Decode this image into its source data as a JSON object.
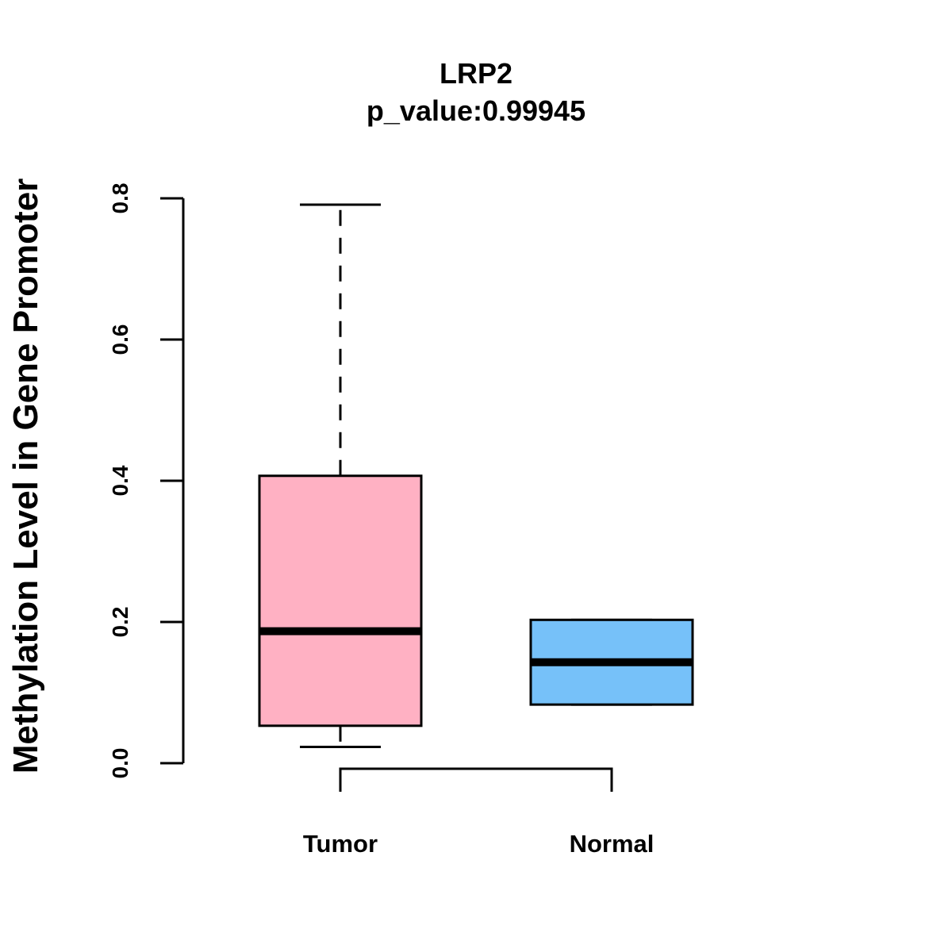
{
  "chart_data": {
    "type": "boxplot",
    "title": "LRP2",
    "subtitle": "p_value:0.99945",
    "xlabel": "",
    "ylabel": "Methylation Level in Gene Promoter",
    "ylim": [
      0,
      0.8
    ],
    "yticks": [
      {
        "value": 0.0,
        "label": "0.0"
      },
      {
        "value": 0.2,
        "label": "0.2"
      },
      {
        "value": 0.4,
        "label": "0.4"
      },
      {
        "value": 0.6,
        "label": "0.6"
      },
      {
        "value": 0.8,
        "label": "0.8"
      }
    ],
    "groups": [
      {
        "name": "Tumor",
        "min": 0.023,
        "q1": 0.053,
        "median": 0.187,
        "q3": 0.407,
        "max": 0.791,
        "color": "#FFB1C3"
      },
      {
        "name": "Normal",
        "min": 0.083,
        "q1": 0.083,
        "median": 0.143,
        "q3": 0.203,
        "max": 0.203,
        "color": "#76C1F9"
      }
    ],
    "comparison_bracket": {
      "between": [
        "Tumor",
        "Normal"
      ]
    }
  }
}
